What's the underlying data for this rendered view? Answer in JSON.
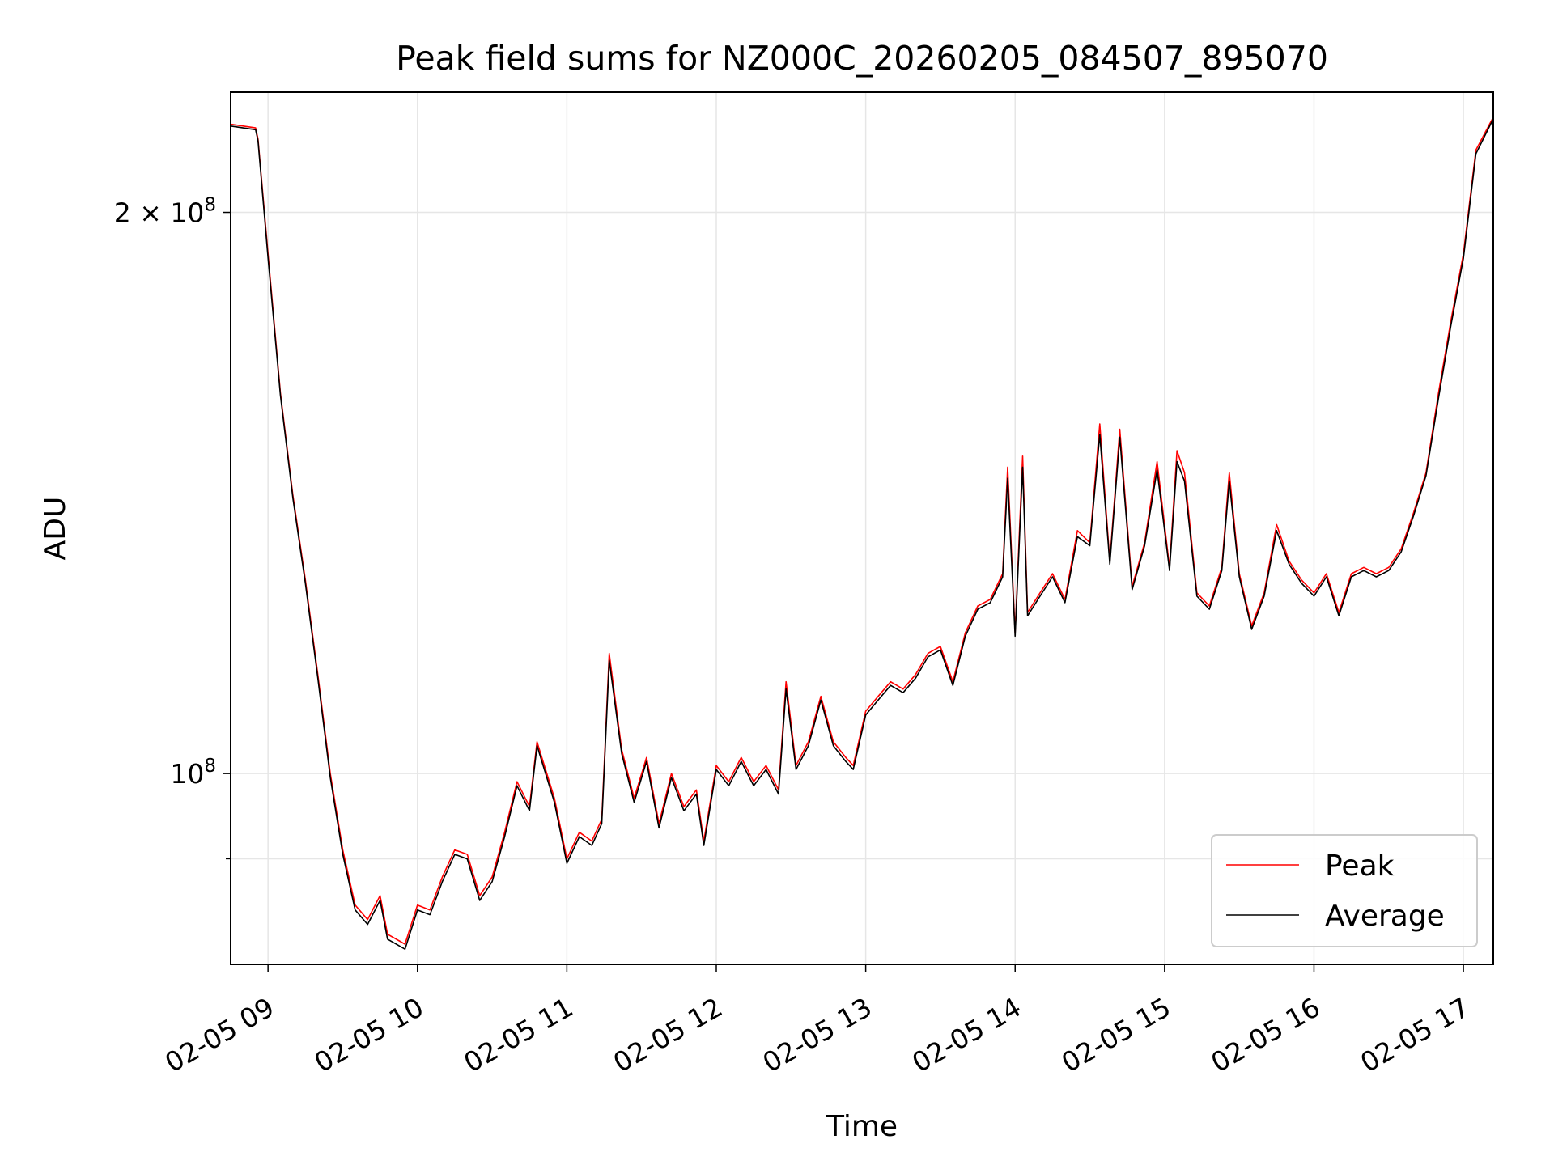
{
  "chart_data": {
    "type": "line",
    "title": "Peak field sums for NZ000C_20260205_084507_895070",
    "xlabel": "Time",
    "ylabel": "ADU",
    "yscale": "log",
    "grid": true,
    "legend_placement": "bottom-right",
    "x_ticks": [
      "02-05 09",
      "02-05 10",
      "02-05 11",
      "02-05 12",
      "02-05 13",
      "02-05 14",
      "02-05 15",
      "02-05 16",
      "02-05 17"
    ],
    "y_tick_labels": [
      "2 × 10^8",
      "10^8"
    ],
    "xlim": [
      "2026-02-05 08:45",
      "2026-02-05 17:12"
    ],
    "ylim": [
      79000000,
      232000000
    ],
    "series": [
      {
        "name": "Peak",
        "color": "#ff0000",
        "x": [
          "2026-02-05 08:45",
          "2026-02-05 08:55",
          "2026-02-05 08:56",
          "2026-02-05 09:00",
          "2026-02-05 09:05",
          "2026-02-05 09:10",
          "2026-02-05 09:15",
          "2026-02-05 09:20",
          "2026-02-05 09:25",
          "2026-02-05 09:30",
          "2026-02-05 09:35",
          "2026-02-05 09:40",
          "2026-02-05 09:45",
          "2026-02-05 09:48",
          "2026-02-05 09:55",
          "2026-02-05 10:00",
          "2026-02-05 10:05",
          "2026-02-05 10:10",
          "2026-02-05 10:15",
          "2026-02-05 10:20",
          "2026-02-05 10:25",
          "2026-02-05 10:30",
          "2026-02-05 10:35",
          "2026-02-05 10:40",
          "2026-02-05 10:45",
          "2026-02-05 10:48",
          "2026-02-05 10:55",
          "2026-02-05 11:00",
          "2026-02-05 11:05",
          "2026-02-05 11:10",
          "2026-02-05 11:14",
          "2026-02-05 11:17",
          "2026-02-05 11:22",
          "2026-02-05 11:27",
          "2026-02-05 11:32",
          "2026-02-05 11:37",
          "2026-02-05 11:42",
          "2026-02-05 11:47",
          "2026-02-05 11:52",
          "2026-02-05 11:55",
          "2026-02-05 12:00",
          "2026-02-05 12:05",
          "2026-02-05 12:10",
          "2026-02-05 12:15",
          "2026-02-05 12:20",
          "2026-02-05 12:25",
          "2026-02-05 12:28",
          "2026-02-05 12:32",
          "2026-02-05 12:37",
          "2026-02-05 12:42",
          "2026-02-05 12:47",
          "2026-02-05 12:52",
          "2026-02-05 12:55",
          "2026-02-05 13:00",
          "2026-02-05 13:05",
          "2026-02-05 13:10",
          "2026-02-05 13:15",
          "2026-02-05 13:20",
          "2026-02-05 13:25",
          "2026-02-05 13:30",
          "2026-02-05 13:35",
          "2026-02-05 13:40",
          "2026-02-05 13:45",
          "2026-02-05 13:50",
          "2026-02-05 13:55",
          "2026-02-05 13:57",
          "2026-02-05 14:00",
          "2026-02-05 14:03",
          "2026-02-05 14:05",
          "2026-02-05 14:10",
          "2026-02-05 14:15",
          "2026-02-05 14:20",
          "2026-02-05 14:25",
          "2026-02-05 14:30",
          "2026-02-05 14:34",
          "2026-02-05 14:38",
          "2026-02-05 14:42",
          "2026-02-05 14:47",
          "2026-02-05 14:52",
          "2026-02-05 14:57",
          "2026-02-05 15:02",
          "2026-02-05 15:05",
          "2026-02-05 15:08",
          "2026-02-05 15:13",
          "2026-02-05 15:18",
          "2026-02-05 15:23",
          "2026-02-05 15:26",
          "2026-02-05 15:30",
          "2026-02-05 15:35",
          "2026-02-05 15:40",
          "2026-02-05 15:45",
          "2026-02-05 15:50",
          "2026-02-05 15:55",
          "2026-02-05 16:00",
          "2026-02-05 16:05",
          "2026-02-05 16:10",
          "2026-02-05 16:15",
          "2026-02-05 16:20",
          "2026-02-05 16:25",
          "2026-02-05 16:30",
          "2026-02-05 16:35",
          "2026-02-05 16:40",
          "2026-02-05 16:45",
          "2026-02-05 16:50",
          "2026-02-05 16:55",
          "2026-02-05 17:00",
          "2026-02-05 17:05",
          "2026-02-05 17:12"
        ],
        "values": [
          223000000,
          222000000,
          219000000,
          190000000,
          160000000,
          141000000,
          127000000,
          113000000,
          100000000,
          91000000,
          85000000,
          83500000,
          86000000,
          82000000,
          81000000,
          85000000,
          84500000,
          88000000,
          91000000,
          90500000,
          86000000,
          88000000,
          93000000,
          99000000,
          96000000,
          104000000,
          97000000,
          90000000,
          93000000,
          92000000,
          94500000,
          116000000,
          103000000,
          97000000,
          102000000,
          94000000,
          100000000,
          96000000,
          98000000,
          92000000,
          101000000,
          99000000,
          102000000,
          99000000,
          101000000,
          98000000,
          112000000,
          101000000,
          104000000,
          110000000,
          104000000,
          102000000,
          101000000,
          108000000,
          110000000,
          112000000,
          111000000,
          113000000,
          116000000,
          117000000,
          112000000,
          119000000,
          123000000,
          124000000,
          128000000,
          146000000,
          119000000,
          148000000,
          122000000,
          125000000,
          128000000,
          124000000,
          135000000,
          133000000,
          154000000,
          130000000,
          153000000,
          126000000,
          133000000,
          147000000,
          129000000,
          149000000,
          145000000,
          125000000,
          123000000,
          129000000,
          145000000,
          128000000,
          120000000,
          125000000,
          136000000,
          130000000,
          127000000,
          125000000,
          128000000,
          122000000,
          128000000,
          129000000,
          128000000,
          129000000,
          132000000,
          138000000,
          145000000,
          160000000,
          175000000,
          190000000,
          216000000,
          225000000
        ]
      },
      {
        "name": "Average",
        "color": "#000000",
        "x": [
          "2026-02-05 08:45",
          "2026-02-05 08:55",
          "2026-02-05 08:56",
          "2026-02-05 09:00",
          "2026-02-05 09:05",
          "2026-02-05 09:10",
          "2026-02-05 09:15",
          "2026-02-05 09:20",
          "2026-02-05 09:25",
          "2026-02-05 09:30",
          "2026-02-05 09:35",
          "2026-02-05 09:40",
          "2026-02-05 09:45",
          "2026-02-05 09:48",
          "2026-02-05 09:55",
          "2026-02-05 10:00",
          "2026-02-05 10:05",
          "2026-02-05 10:10",
          "2026-02-05 10:15",
          "2026-02-05 10:20",
          "2026-02-05 10:25",
          "2026-02-05 10:30",
          "2026-02-05 10:35",
          "2026-02-05 10:40",
          "2026-02-05 10:45",
          "2026-02-05 10:48",
          "2026-02-05 10:55",
          "2026-02-05 11:00",
          "2026-02-05 11:05",
          "2026-02-05 11:10",
          "2026-02-05 11:14",
          "2026-02-05 11:17",
          "2026-02-05 11:22",
          "2026-02-05 11:27",
          "2026-02-05 11:32",
          "2026-02-05 11:37",
          "2026-02-05 11:42",
          "2026-02-05 11:47",
          "2026-02-05 11:52",
          "2026-02-05 11:55",
          "2026-02-05 12:00",
          "2026-02-05 12:05",
          "2026-02-05 12:10",
          "2026-02-05 12:15",
          "2026-02-05 12:20",
          "2026-02-05 12:25",
          "2026-02-05 12:28",
          "2026-02-05 12:32",
          "2026-02-05 12:37",
          "2026-02-05 12:42",
          "2026-02-05 12:47",
          "2026-02-05 12:52",
          "2026-02-05 12:55",
          "2026-02-05 13:00",
          "2026-02-05 13:05",
          "2026-02-05 13:10",
          "2026-02-05 13:15",
          "2026-02-05 13:20",
          "2026-02-05 13:25",
          "2026-02-05 13:30",
          "2026-02-05 13:35",
          "2026-02-05 13:40",
          "2026-02-05 13:45",
          "2026-02-05 13:50",
          "2026-02-05 13:55",
          "2026-02-05 13:57",
          "2026-02-05 14:00",
          "2026-02-05 14:03",
          "2026-02-05 14:05",
          "2026-02-05 14:10",
          "2026-02-05 14:15",
          "2026-02-05 14:20",
          "2026-02-05 14:25",
          "2026-02-05 14:30",
          "2026-02-05 14:34",
          "2026-02-05 14:38",
          "2026-02-05 14:42",
          "2026-02-05 14:47",
          "2026-02-05 14:52",
          "2026-02-05 14:57",
          "2026-02-05 15:02",
          "2026-02-05 15:05",
          "2026-02-05 15:08",
          "2026-02-05 15:13",
          "2026-02-05 15:18",
          "2026-02-05 15:23",
          "2026-02-05 15:26",
          "2026-02-05 15:30",
          "2026-02-05 15:35",
          "2026-02-05 15:40",
          "2026-02-05 15:45",
          "2026-02-05 15:50",
          "2026-02-05 15:55",
          "2026-02-05 16:00",
          "2026-02-05 16:05",
          "2026-02-05 16:10",
          "2026-02-05 16:15",
          "2026-02-05 16:20",
          "2026-02-05 16:25",
          "2026-02-05 16:30",
          "2026-02-05 16:35",
          "2026-02-05 16:40",
          "2026-02-05 16:45",
          "2026-02-05 16:50",
          "2026-02-05 16:55",
          "2026-02-05 17:00",
          "2026-02-05 17:05",
          "2026-02-05 17:12"
        ],
        "values": [
          222500000,
          221500000,
          218500000,
          189000000,
          159500000,
          140500000,
          126500000,
          112500000,
          99500000,
          90500000,
          84500000,
          83000000,
          85500000,
          81500000,
          80500000,
          84500000,
          84000000,
          87500000,
          90500000,
          90000000,
          85500000,
          87500000,
          92500000,
          98500000,
          95500000,
          103500000,
          96500000,
          89500000,
          92500000,
          91500000,
          94000000,
          115000000,
          102500000,
          96500000,
          101500000,
          93500000,
          99500000,
          95500000,
          97500000,
          91500000,
          100500000,
          98500000,
          101500000,
          98500000,
          100500000,
          97500000,
          111000000,
          100500000,
          103500000,
          109500000,
          103500000,
          101500000,
          100500000,
          107500000,
          109500000,
          111500000,
          110500000,
          112500000,
          115500000,
          116500000,
          111500000,
          118500000,
          122500000,
          123500000,
          127500000,
          144000000,
          118500000,
          146000000,
          121500000,
          124500000,
          127500000,
          123500000,
          134000000,
          132500000,
          152000000,
          129500000,
          151500000,
          125500000,
          132500000,
          145500000,
          128500000,
          147000000,
          143500000,
          124500000,
          122500000,
          128500000,
          143500000,
          127500000,
          119500000,
          124500000,
          135000000,
          129500000,
          126500000,
          124500000,
          127500000,
          121500000,
          127500000,
          128500000,
          127500000,
          128500000,
          131500000,
          137500000,
          144500000,
          159000000,
          174000000,
          189000000,
          215000000,
          224500000
        ]
      }
    ]
  }
}
